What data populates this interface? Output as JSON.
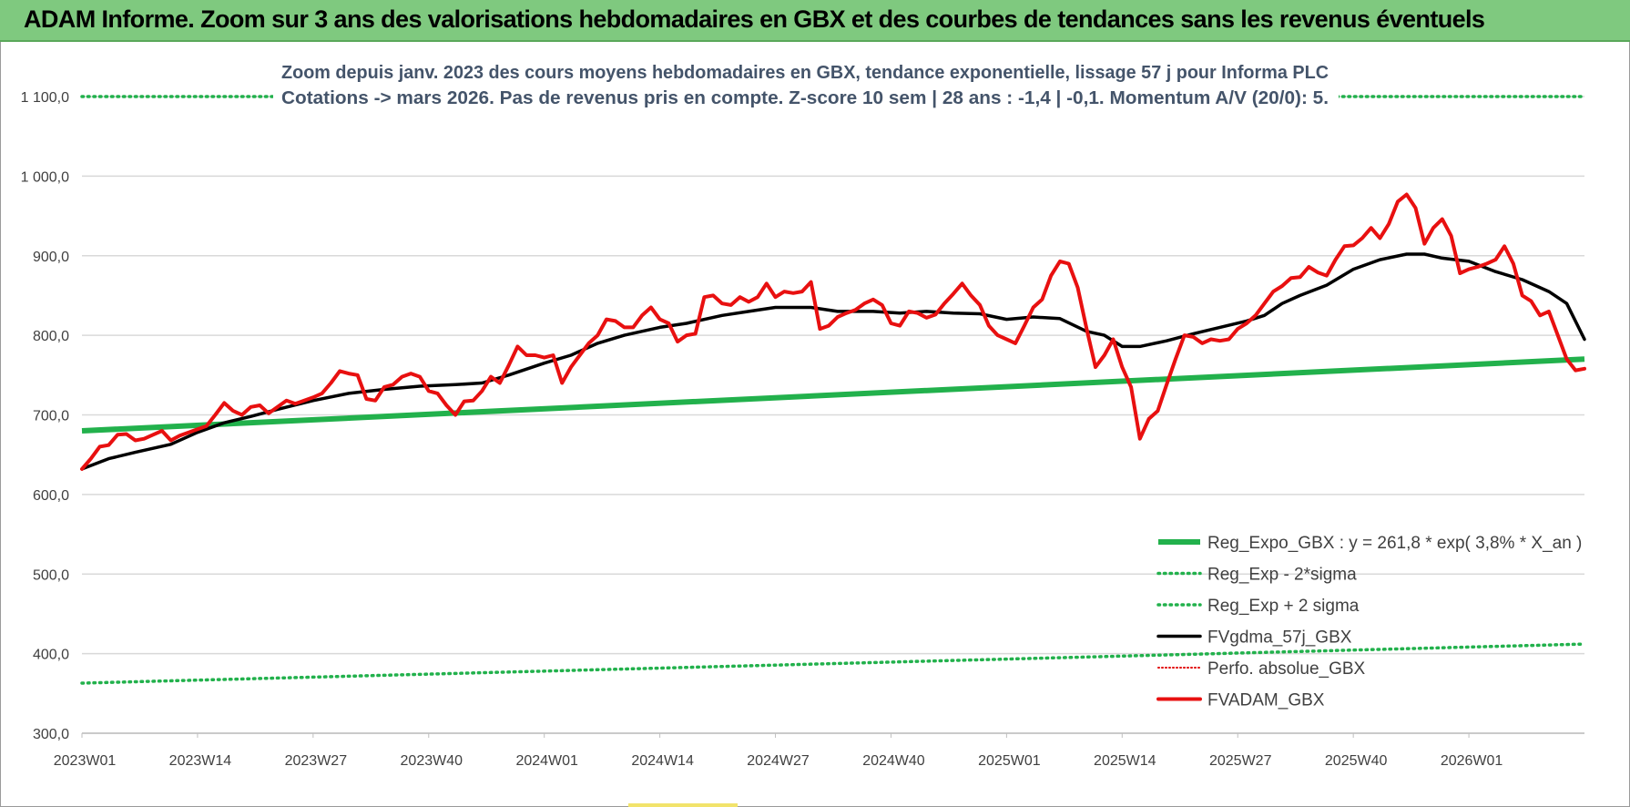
{
  "header": {
    "title": "ADAM Informe. Zoom sur 3 ans des valorisations hebdomadaires en GBX et des courbes de tendances sans les revenus éventuels"
  },
  "chart_data": {
    "type": "line",
    "title_lines": [
      "Zoom depuis janv. 2023 des cours moyens hebdomadaires en GBX, tendance exponentielle, lissage 57 j pour Informa PLC",
      "Cotations -> mars 2026. Pas de revenus pris en compte. Z-score 10 sem | 28 ans : -1,4 | -0,1. Momentum A/V (20/0): 5."
    ],
    "xlabel": "",
    "ylabel": "",
    "ylim": [
      300,
      1100
    ],
    "y_ticks": [
      "300,0",
      "400,0",
      "500,0",
      "600,0",
      "700,0",
      "800,0",
      "900,0",
      "1 000,0",
      "1 100,0"
    ],
    "x_ticks": [
      "2023W01",
      "2023W14",
      "2023W27",
      "2023W40",
      "2024W01",
      "2024W14",
      "2024W27",
      "2024W40",
      "2025W01",
      "2025W14",
      "2025W27",
      "2025W40",
      "2026W01"
    ],
    "x_tick_weeks": [
      0,
      13,
      26,
      39,
      52,
      65,
      78,
      91,
      104,
      117,
      130,
      143,
      156
    ],
    "x_range_weeks": [
      0,
      169
    ],
    "grid": true,
    "legend_position": "bottom-right",
    "colors": {
      "reg_expo": "#22b14c",
      "sigma": "#22b14c",
      "fvgdma": "#000000",
      "perfo": "#e00000",
      "fvadam": "#e81010",
      "grid": "#d9d9d9",
      "axis_text": "#404040",
      "title_text": "#44546a"
    },
    "series": [
      {
        "name": "Reg_Expo_GBX : y = 261,8 * exp( 3,8% *  X_an )",
        "style": "thick",
        "points": [
          [
            0,
            680
          ],
          [
            169,
            770
          ]
        ]
      },
      {
        "name": "Reg_Exp - 2*sigma",
        "style": "dotted",
        "points": [
          [
            0,
            363
          ],
          [
            169,
            412
          ]
        ]
      },
      {
        "name": "Reg_Exp + 2 sigma",
        "style": "dotted",
        "points": [
          [
            0,
            1100
          ],
          [
            169,
            1100
          ]
        ]
      },
      {
        "name": "FVgdma_57j_GBX",
        "style": "solid",
        "points": [
          [
            0,
            632
          ],
          [
            3,
            645
          ],
          [
            6,
            653
          ],
          [
            10,
            663
          ],
          [
            13,
            678
          ],
          [
            16,
            690
          ],
          [
            19,
            698
          ],
          [
            22,
            707
          ],
          [
            26,
            718
          ],
          [
            30,
            727
          ],
          [
            34,
            732
          ],
          [
            38,
            736
          ],
          [
            42,
            738
          ],
          [
            45,
            740
          ],
          [
            48,
            750
          ],
          [
            52,
            765
          ],
          [
            55,
            775
          ],
          [
            58,
            790
          ],
          [
            61,
            800
          ],
          [
            65,
            810
          ],
          [
            68,
            815
          ],
          [
            72,
            825
          ],
          [
            75,
            830
          ],
          [
            78,
            835
          ],
          [
            82,
            835
          ],
          [
            85,
            830
          ],
          [
            89,
            830
          ],
          [
            92,
            828
          ],
          [
            95,
            830
          ],
          [
            98,
            828
          ],
          [
            101,
            827
          ],
          [
            104,
            820
          ],
          [
            107,
            823
          ],
          [
            110,
            821
          ],
          [
            113,
            805
          ],
          [
            115,
            800
          ],
          [
            117,
            786
          ],
          [
            119,
            786
          ],
          [
            122,
            793
          ],
          [
            125,
            802
          ],
          [
            128,
            810
          ],
          [
            131,
            818
          ],
          [
            133,
            825
          ],
          [
            135,
            840
          ],
          [
            137,
            850
          ],
          [
            140,
            863
          ],
          [
            143,
            883
          ],
          [
            146,
            895
          ],
          [
            149,
            902
          ],
          [
            151,
            902
          ],
          [
            153,
            897
          ],
          [
            156,
            893
          ],
          [
            159,
            880
          ],
          [
            162,
            870
          ],
          [
            165,
            855
          ],
          [
            167,
            840
          ],
          [
            169,
            795
          ]
        ]
      },
      {
        "name": "Perfo. absolue_GBX",
        "style": "dotted-red",
        "points": []
      },
      {
        "name": "FVADAM_GBX",
        "style": "thick",
        "points": [
          [
            0,
            632
          ],
          [
            1,
            645
          ],
          [
            2,
            660
          ],
          [
            3,
            662
          ],
          [
            4,
            675
          ],
          [
            5,
            676
          ],
          [
            6,
            668
          ],
          [
            7,
            670
          ],
          [
            8,
            675
          ],
          [
            9,
            680
          ],
          [
            10,
            668
          ],
          [
            11,
            674
          ],
          [
            12,
            678
          ],
          [
            13,
            682
          ],
          [
            14,
            686
          ],
          [
            15,
            700
          ],
          [
            16,
            715
          ],
          [
            17,
            705
          ],
          [
            18,
            700
          ],
          [
            19,
            710
          ],
          [
            20,
            712
          ],
          [
            21,
            702
          ],
          [
            22,
            710
          ],
          [
            23,
            718
          ],
          [
            24,
            714
          ],
          [
            25,
            718
          ],
          [
            26,
            722
          ],
          [
            27,
            727
          ],
          [
            28,
            740
          ],
          [
            29,
            755
          ],
          [
            30,
            752
          ],
          [
            31,
            750
          ],
          [
            32,
            720
          ],
          [
            33,
            718
          ],
          [
            34,
            735
          ],
          [
            35,
            738
          ],
          [
            36,
            748
          ],
          [
            37,
            752
          ],
          [
            38,
            748
          ],
          [
            39,
            730
          ],
          [
            40,
            727
          ],
          [
            41,
            712
          ],
          [
            42,
            700
          ],
          [
            43,
            717
          ],
          [
            44,
            718
          ],
          [
            45,
            730
          ],
          [
            46,
            748
          ],
          [
            47,
            740
          ],
          [
            48,
            762
          ],
          [
            49,
            786
          ],
          [
            50,
            775
          ],
          [
            51,
            775
          ],
          [
            52,
            772
          ],
          [
            53,
            775
          ],
          [
            54,
            740
          ],
          [
            55,
            760
          ],
          [
            56,
            775
          ],
          [
            57,
            790
          ],
          [
            58,
            800
          ],
          [
            59,
            820
          ],
          [
            60,
            818
          ],
          [
            61,
            810
          ],
          [
            62,
            810
          ],
          [
            63,
            825
          ],
          [
            64,
            835
          ],
          [
            65,
            820
          ],
          [
            66,
            815
          ],
          [
            67,
            792
          ],
          [
            68,
            800
          ],
          [
            69,
            802
          ],
          [
            70,
            848
          ],
          [
            71,
            850
          ],
          [
            72,
            840
          ],
          [
            73,
            838
          ],
          [
            74,
            848
          ],
          [
            75,
            842
          ],
          [
            76,
            848
          ],
          [
            77,
            865
          ],
          [
            78,
            848
          ],
          [
            79,
            855
          ],
          [
            80,
            853
          ],
          [
            81,
            855
          ],
          [
            82,
            867
          ],
          [
            83,
            808
          ],
          [
            84,
            812
          ],
          [
            85,
            823
          ],
          [
            86,
            828
          ],
          [
            87,
            832
          ],
          [
            88,
            840
          ],
          [
            89,
            845
          ],
          [
            90,
            838
          ],
          [
            91,
            815
          ],
          [
            92,
            812
          ],
          [
            93,
            830
          ],
          [
            94,
            828
          ],
          [
            95,
            822
          ],
          [
            96,
            826
          ],
          [
            97,
            840
          ],
          [
            98,
            852
          ],
          [
            99,
            865
          ],
          [
            100,
            850
          ],
          [
            101,
            838
          ],
          [
            102,
            812
          ],
          [
            103,
            800
          ],
          [
            104,
            795
          ],
          [
            105,
            790
          ],
          [
            106,
            812
          ],
          [
            107,
            835
          ],
          [
            108,
            845
          ],
          [
            109,
            875
          ],
          [
            110,
            893
          ],
          [
            111,
            890
          ],
          [
            112,
            860
          ],
          [
            113,
            808
          ],
          [
            114,
            760
          ],
          [
            115,
            775
          ],
          [
            116,
            795
          ],
          [
            117,
            760
          ],
          [
            118,
            735
          ],
          [
            119,
            670
          ],
          [
            120,
            695
          ],
          [
            121,
            705
          ],
          [
            122,
            738
          ],
          [
            123,
            770
          ],
          [
            124,
            800
          ],
          [
            125,
            798
          ],
          [
            126,
            790
          ],
          [
            127,
            795
          ],
          [
            128,
            793
          ],
          [
            129,
            795
          ],
          [
            130,
            808
          ],
          [
            131,
            815
          ],
          [
            132,
            825
          ],
          [
            133,
            840
          ],
          [
            134,
            855
          ],
          [
            135,
            862
          ],
          [
            136,
            872
          ],
          [
            137,
            873
          ],
          [
            138,
            886
          ],
          [
            139,
            879
          ],
          [
            140,
            875
          ],
          [
            141,
            895
          ],
          [
            142,
            912
          ],
          [
            143,
            913
          ],
          [
            144,
            922
          ],
          [
            145,
            935
          ],
          [
            146,
            922
          ],
          [
            147,
            940
          ],
          [
            148,
            968
          ],
          [
            149,
            977
          ],
          [
            150,
            960
          ],
          [
            151,
            915
          ],
          [
            152,
            935
          ],
          [
            153,
            946
          ],
          [
            154,
            925
          ],
          [
            155,
            878
          ],
          [
            156,
            883
          ],
          [
            157,
            886
          ],
          [
            158,
            890
          ],
          [
            159,
            895
          ],
          [
            160,
            912
          ],
          [
            161,
            890
          ],
          [
            162,
            850
          ],
          [
            163,
            843
          ],
          [
            164,
            825
          ],
          [
            165,
            830
          ],
          [
            166,
            800
          ],
          [
            167,
            770
          ],
          [
            168,
            756
          ],
          [
            169,
            758
          ]
        ]
      }
    ]
  }
}
